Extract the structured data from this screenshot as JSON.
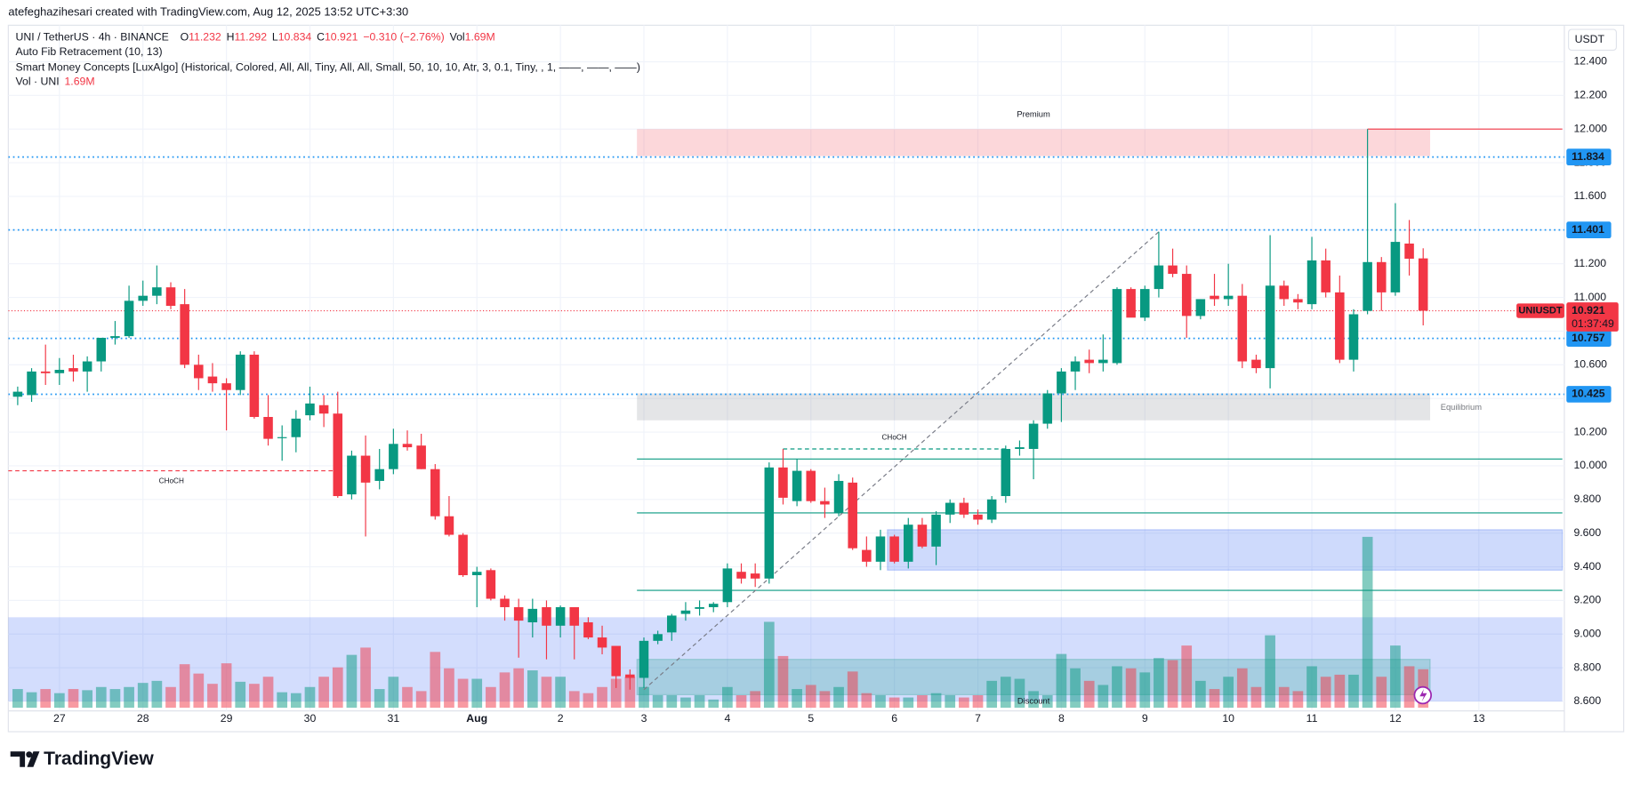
{
  "header": {
    "credit": "atefeghazihesari created with TradingView.com, Aug 12, 2025 13:52 UTC+3:30",
    "symbol": "UNI / TetherUS · 4h · BINANCE",
    "ohlc": [
      {
        "label": "O",
        "value": 11.232
      },
      {
        "label": "H",
        "value": 11.292
      },
      {
        "label": "L",
        "value": 10.834
      },
      {
        "label": "C",
        "value": 10.921
      }
    ],
    "change": "−0.310 (−2.76%)",
    "volume": {
      "label": "Vol",
      "value": "1.69M"
    },
    "indicators": [
      "Auto Fib Retracement (10, 13)",
      "Smart Money Concepts [LuxAlgo] (Historical, Colored, All, All, Tiny, All, All, Small, 50, 10, 10, Atr, 3, 0.1, Tiny, , 1, ——, ——, ——)"
    ],
    "vol_legend": {
      "label": "Vol · UNI",
      "value": "1.69M"
    }
  },
  "chart_data": {
    "type": "candlestick",
    "categories": [
      null,
      null,
      null,
      "27",
      null,
      null,
      null,
      null,
      null,
      "28",
      null,
      null,
      null,
      null,
      null,
      "29",
      null,
      null,
      null,
      null,
      null,
      "30",
      null,
      null,
      null,
      null,
      null,
      "31",
      null,
      null,
      null,
      null,
      null,
      "Aug",
      null,
      null,
      null,
      null,
      null,
      "2",
      null,
      null,
      null,
      null,
      null,
      "3",
      null,
      null,
      null,
      null,
      null,
      "4",
      null,
      null,
      null,
      null,
      null,
      "5",
      null,
      null,
      null,
      null,
      null,
      "6",
      null,
      null,
      null,
      null,
      null,
      "7",
      null,
      null,
      null,
      null,
      null,
      "8",
      null,
      null,
      null,
      null,
      null,
      "9",
      null,
      null,
      null,
      null,
      null,
      "10",
      null,
      null,
      null,
      null,
      null,
      "11",
      null,
      null,
      null,
      null,
      null,
      "12",
      null,
      null,
      null,
      null,
      null,
      "13"
    ],
    "open": [
      10.41,
      10.42,
      10.56,
      10.55,
      10.58,
      10.56,
      10.62,
      10.76,
      10.77,
      10.98,
      11.01,
      11.06,
      10.96,
      10.6,
      10.53,
      10.49,
      10.45,
      10.66,
      10.29,
      10.17,
      10.17,
      10.3,
      10.36,
      10.31,
      9.83,
      10.06,
      9.91,
      9.98,
      10.13,
      10.12,
      9.98,
      9.7,
      9.59,
      9.35,
      9.38,
      9.21,
      9.16,
      9.07,
      9.16,
      9.05,
      9.16,
      9.07,
      8.98,
      8.93,
      8.76,
      8.74,
      8.96,
      9.01,
      9.12,
      9.15,
      9.16,
      9.19,
      9.37,
      9.36,
      9.33,
      9.99,
      9.79,
      9.97,
      9.79,
      9.72,
      9.9,
      9.5,
      9.43,
      9.58,
      9.43,
      9.65,
      9.52,
      9.71,
      9.78,
      9.71,
      9.68,
      9.82,
      10.1,
      10.1,
      10.25,
      10.43,
      10.56,
      10.63,
      10.61,
      10.61,
      11.05,
      10.88,
      11.05,
      11.19,
      11.14,
      10.89,
      11.01,
      10.99,
      11.01,
      10.63,
      10.58,
      11.07,
      10.99,
      10.96,
      11.22,
      11.03,
      10.63,
      10.92,
      11.21,
      11.03,
      11.32,
      11.232,
      null,
      null,
      null,
      null
    ],
    "high": [
      10.47,
      10.58,
      10.72,
      10.64,
      10.66,
      10.65,
      10.76,
      10.86,
      11.07,
      11.1,
      11.19,
      11.09,
      11.05,
      10.66,
      10.61,
      10.52,
      10.68,
      10.68,
      10.42,
      10.24,
      10.33,
      10.47,
      10.42,
      10.44,
      10.09,
      10.18,
      10.1,
      10.22,
      10.21,
      10.19,
      10.01,
      9.82,
      9.6,
      9.4,
      9.39,
      9.23,
      9.21,
      9.21,
      9.2,
      9.17,
      9.16,
      9.1,
      9.05,
      8.93,
      8.79,
      8.98,
      9.02,
      9.12,
      9.19,
      9.2,
      9.19,
      9.42,
      9.42,
      9.42,
      10.02,
      10.1,
      10.04,
      9.98,
      9.87,
      9.95,
      9.93,
      9.58,
      9.62,
      9.59,
      9.69,
      9.69,
      9.73,
      9.8,
      9.81,
      9.74,
      9.82,
      10.12,
      10.15,
      10.27,
      10.45,
      10.58,
      10.65,
      10.69,
      10.78,
      11.06,
      11.06,
      11.07,
      11.39,
      11.29,
      11.19,
      10.99,
      11.14,
      11.2,
      11.08,
      10.66,
      11.37,
      11.1,
      11.02,
      11.36,
      11.29,
      11.13,
      10.93,
      12.0,
      11.24,
      11.56,
      11.46,
      11.292,
      null,
      null,
      null,
      null
    ],
    "low": [
      10.36,
      10.38,
      10.48,
      10.48,
      10.5,
      10.44,
      10.56,
      10.72,
      10.76,
      10.95,
      10.96,
      10.93,
      10.58,
      10.45,
      10.44,
      10.21,
      10.42,
      10.28,
      10.12,
      10.03,
      10.08,
      10.27,
      10.23,
      9.81,
      9.8,
      9.58,
      9.86,
      9.95,
      10.09,
      9.98,
      9.68,
      9.58,
      9.34,
      9.16,
      9.2,
      9.08,
      8.86,
      8.98,
      8.85,
      8.98,
      8.85,
      8.97,
      8.88,
      8.68,
      8.67,
      8.68,
      8.94,
      8.96,
      9.08,
      9.11,
      9.13,
      9.16,
      9.3,
      9.28,
      9.3,
      9.77,
      9.76,
      9.78,
      9.69,
      9.7,
      9.5,
      9.4,
      9.38,
      9.42,
      9.39,
      9.51,
      9.41,
      9.66,
      9.69,
      9.65,
      9.66,
      9.78,
      10.06,
      9.92,
      10.22,
      10.26,
      10.45,
      10.55,
      10.56,
      10.6,
      10.9,
      10.86,
      11.0,
      11.12,
      10.76,
      10.87,
      10.95,
      10.95,
      10.58,
      10.55,
      10.46,
      10.95,
      10.93,
      10.93,
      11.0,
      10.61,
      10.56,
      10.9,
      10.92,
      11.01,
      11.13,
      10.834,
      null,
      null,
      null,
      null
    ],
    "close": [
      10.44,
      10.56,
      10.55,
      10.57,
      10.56,
      10.62,
      10.76,
      10.77,
      10.98,
      11.01,
      11.06,
      10.95,
      10.6,
      10.52,
      10.49,
      10.45,
      10.66,
      10.29,
      10.16,
      10.17,
      10.28,
      10.37,
      10.31,
      9.82,
      10.06,
      9.9,
      9.98,
      10.13,
      10.11,
      9.98,
      9.7,
      9.59,
      9.35,
      9.37,
      9.21,
      9.16,
      9.08,
      9.15,
      9.05,
      9.16,
      9.05,
      8.98,
      8.92,
      8.75,
      8.74,
      8.96,
      9.0,
      9.11,
      9.14,
      9.16,
      9.18,
      9.39,
      9.33,
      9.33,
      9.99,
      9.81,
      9.97,
      9.79,
      9.77,
      9.91,
      9.51,
      9.43,
      9.58,
      9.43,
      9.65,
      9.52,
      9.71,
      9.78,
      9.71,
      9.68,
      9.8,
      10.1,
      10.11,
      10.25,
      10.43,
      10.56,
      10.62,
      10.61,
      10.63,
      11.05,
      10.88,
      11.05,
      11.19,
      11.14,
      10.89,
      10.99,
      10.99,
      11.01,
      10.62,
      10.58,
      11.07,
      10.99,
      10.97,
      11.22,
      11.03,
      10.63,
      10.9,
      11.21,
      11.03,
      11.33,
      11.23,
      10.921,
      null,
      null,
      null,
      null
    ],
    "volume": [
      0.82,
      0.68,
      0.82,
      0.64,
      0.82,
      0.77,
      0.91,
      0.82,
      0.91,
      1.09,
      1.18,
      0.91,
      1.91,
      1.5,
      1.05,
      1.95,
      1.14,
      1.05,
      1.36,
      0.68,
      0.64,
      0.91,
      1.36,
      1.77,
      2.32,
      2.64,
      0.82,
      1.36,
      0.91,
      0.73,
      2.45,
      1.73,
      1.27,
      1.27,
      0.91,
      1.55,
      1.73,
      1.64,
      1.36,
      1.36,
      0.73,
      0.64,
      0.91,
      1.27,
      1.36,
      0.91,
      0.55,
      0.55,
      0.45,
      0.55,
      0.36,
      0.91,
      0.55,
      0.73,
      3.77,
      2.27,
      0.82,
      1.0,
      0.73,
      0.91,
      1.59,
      0.64,
      0.55,
      0.45,
      0.45,
      0.55,
      0.64,
      0.55,
      0.45,
      0.55,
      1.18,
      1.36,
      1.27,
      0.73,
      0.55,
      2.36,
      1.73,
      1.18,
      1.0,
      1.82,
      1.73,
      1.55,
      2.18,
      2.09,
      2.73,
      1.18,
      0.82,
      1.36,
      1.73,
      0.91,
      3.18,
      0.91,
      0.73,
      1.82,
      1.36,
      1.45,
      1.45,
      7.5,
      1.36,
      2.73,
      1.82,
      1.69,
      null,
      null,
      null,
      null
    ],
    "up_color": "#089981",
    "down_color": "#f23645",
    "ylim": [
      8.544,
      12.617
    ],
    "yticks": [
      {
        "value": 8.6,
        "label": "8.600"
      },
      {
        "value": 8.8,
        "label": "8.800"
      },
      {
        "value": 9.0,
        "label": "9.000"
      },
      {
        "value": 9.2,
        "label": "9.200"
      },
      {
        "value": 9.4,
        "label": "9.400"
      },
      {
        "value": 9.6,
        "label": "9.600"
      },
      {
        "value": 9.8,
        "label": "9.800"
      },
      {
        "value": 10.0,
        "label": "10.000"
      },
      {
        "value": 10.2,
        "label": "10.200"
      },
      {
        "value": 10.4,
        "label": "10.400"
      },
      {
        "value": 10.6,
        "label": "10.600"
      },
      {
        "value": 10.8,
        "label": "10.800"
      },
      {
        "value": 11.0,
        "label": "11.000"
      },
      {
        "value": 11.2,
        "label": "11.200"
      },
      {
        "value": 11.4,
        "label": "11.400"
      },
      {
        "value": 11.6,
        "label": "11.600"
      },
      {
        "value": 11.8,
        "label": "11.800"
      },
      {
        "value": 12.0,
        "label": "12.000"
      },
      {
        "value": 12.2,
        "label": "12.200"
      },
      {
        "value": 12.4,
        "label": "12.400"
      }
    ],
    "grid": true,
    "currency": "USDT",
    "price_lines": [
      {
        "value": 11.834,
        "color": "#2196f3"
      },
      {
        "value": 11.401,
        "color": "#2196f3"
      },
      {
        "value": 10.757,
        "color": "#2196f3"
      },
      {
        "value": 10.425,
        "color": "#2196f3"
      }
    ],
    "current": {
      "symbol": "UNIUSDT",
      "value": 10.921,
      "countdown": "01:37:49",
      "color": "#f23645"
    },
    "zones": [
      {
        "name": "Premium",
        "range": [
          11.84,
          12.0
        ],
        "color": "#f23645"
      },
      {
        "name": "Equilibrium",
        "range": [
          10.27,
          10.43
        ],
        "color": "#787b86"
      },
      {
        "name": "Discount",
        "range": [
          8.6,
          9.1
        ],
        "color": "#2157f3"
      }
    ],
    "order_blocks": [
      {
        "range": [
          9.38,
          9.62
        ],
        "color": "#2157f3"
      },
      {
        "range": [
          8.64,
          8.85
        ],
        "color": "#089981"
      }
    ],
    "levels": [
      {
        "value": 10.04,
        "color": "#089981"
      },
      {
        "value": 9.72,
        "color": "#089981"
      },
      {
        "value": 9.26,
        "color": "#089981"
      },
      {
        "value": 12.0,
        "color": "#f23645"
      }
    ],
    "choch": [
      {
        "label": "CHoCH",
        "value": 10.1,
        "color": "#089981"
      },
      {
        "label": "CHoCH",
        "value": 9.97,
        "color": "#f23645"
      }
    ]
  },
  "footer": {
    "brand": "TradingView"
  }
}
